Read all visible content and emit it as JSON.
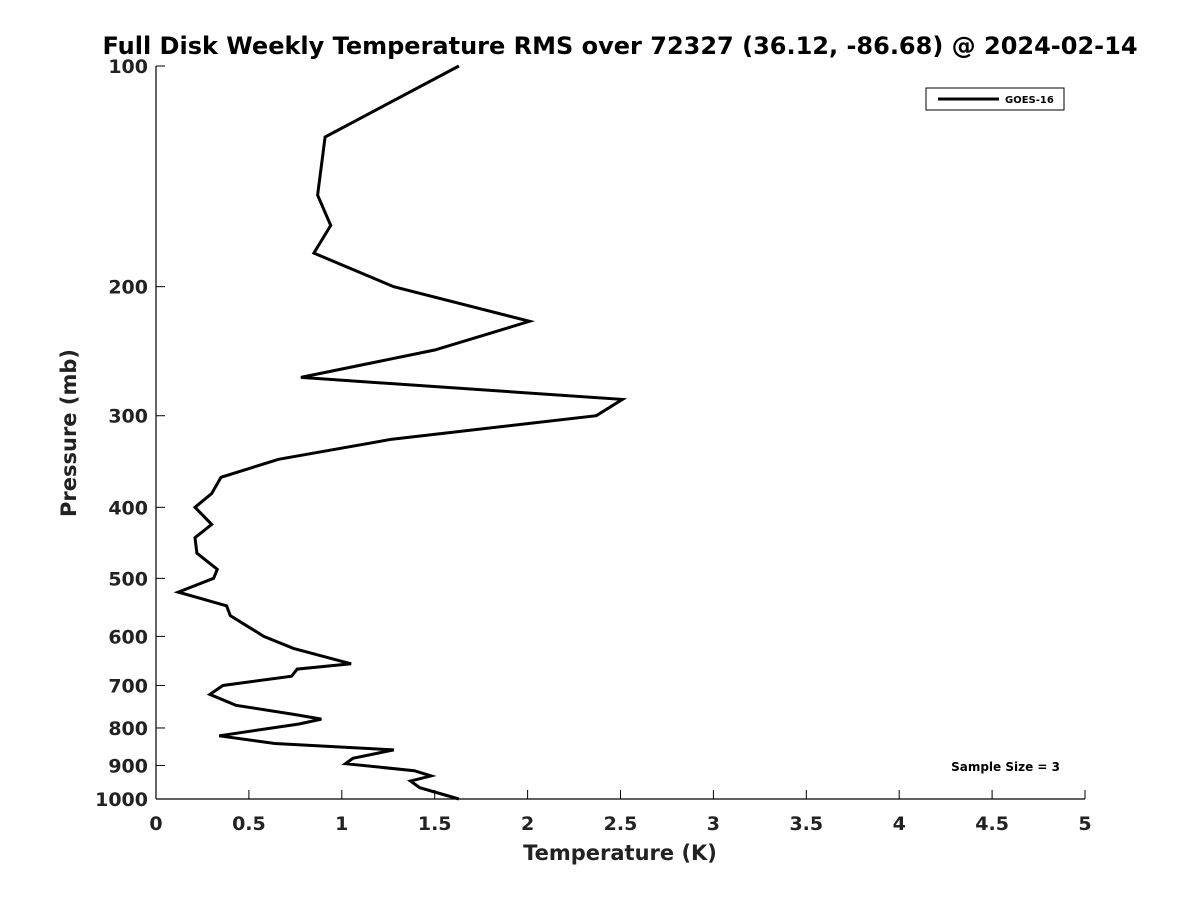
{
  "chart_data": {
    "type": "line",
    "title": "Full Disk Weekly Temperature RMS over 72327 (36.12, -86.68) @ 2024-02-14",
    "xlabel": "Temperature (K)",
    "ylabel": "Pressure (mb)",
    "xlim": [
      0,
      5
    ],
    "ylim": [
      100,
      1000
    ],
    "y_scale": "log",
    "y_reversed": true,
    "x_ticks": [
      0,
      0.5,
      1,
      1.5,
      2,
      2.5,
      3,
      3.5,
      4,
      4.5,
      5
    ],
    "x_tick_labels": [
      "0",
      "0.5",
      "1",
      "1.5",
      "2",
      "2.5",
      "3",
      "3.5",
      "4",
      "4.5",
      "5"
    ],
    "y_ticks": [
      100,
      200,
      300,
      400,
      500,
      600,
      700,
      800,
      900,
      1000
    ],
    "y_tick_labels": [
      "100",
      "200",
      "300",
      "400",
      "500",
      "600",
      "700",
      "800",
      "900",
      "1000"
    ],
    "grid": false,
    "legend_position": "top-right",
    "series": [
      {
        "name": "GOES-16",
        "color": "#000000",
        "points": [
          [
            1.63,
            100
          ],
          [
            0.91,
            125
          ],
          [
            0.87,
            150
          ],
          [
            0.94,
            165
          ],
          [
            0.85,
            180
          ],
          [
            1.28,
            200
          ],
          [
            2.01,
            223
          ],
          [
            1.5,
            244
          ],
          [
            0.78,
            266
          ],
          [
            2.51,
            285
          ],
          [
            2.37,
            300
          ],
          [
            1.27,
            323
          ],
          [
            0.66,
            344
          ],
          [
            0.35,
            364
          ],
          [
            0.3,
            383
          ],
          [
            0.21,
            400
          ],
          [
            0.3,
            422
          ],
          [
            0.21,
            440
          ],
          [
            0.22,
            462
          ],
          [
            0.33,
            486
          ],
          [
            0.31,
            500
          ],
          [
            0.12,
            522
          ],
          [
            0.38,
            545
          ],
          [
            0.4,
            562
          ],
          [
            0.51,
            585
          ],
          [
            0.58,
            600
          ],
          [
            0.74,
            623
          ],
          [
            1.05,
            654
          ],
          [
            0.76,
            665
          ],
          [
            0.73,
            680
          ],
          [
            0.36,
            700
          ],
          [
            0.29,
            720
          ],
          [
            0.43,
            745
          ],
          [
            0.75,
            767
          ],
          [
            0.89,
            778
          ],
          [
            0.77,
            790
          ],
          [
            0.34,
            820
          ],
          [
            0.64,
            840
          ],
          [
            1.28,
            857
          ],
          [
            1.06,
            880
          ],
          [
            1.02,
            895
          ],
          [
            1.39,
            915
          ],
          [
            1.48,
            930
          ],
          [
            1.37,
            945
          ],
          [
            1.42,
            965
          ],
          [
            1.63,
            1000
          ]
        ]
      }
    ],
    "annotations": [
      {
        "text": "Sample Size = 3",
        "position": "bottom-right"
      }
    ]
  }
}
